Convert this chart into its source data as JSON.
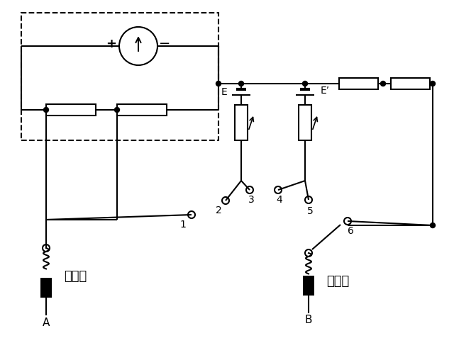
{
  "bg_color": "#ffffff",
  "lc": "black",
  "lw": 1.5,
  "labels": {
    "plus": "+",
    "minus": "−",
    "E": "E",
    "E_prime": "E’",
    "hong": "红表笔",
    "hei": "黑表笔",
    "A": "A",
    "B": "B",
    "n1": "1",
    "n2": "2",
    "n3": "3",
    "n4": "4",
    "n5": "5",
    "n6": "6"
  }
}
